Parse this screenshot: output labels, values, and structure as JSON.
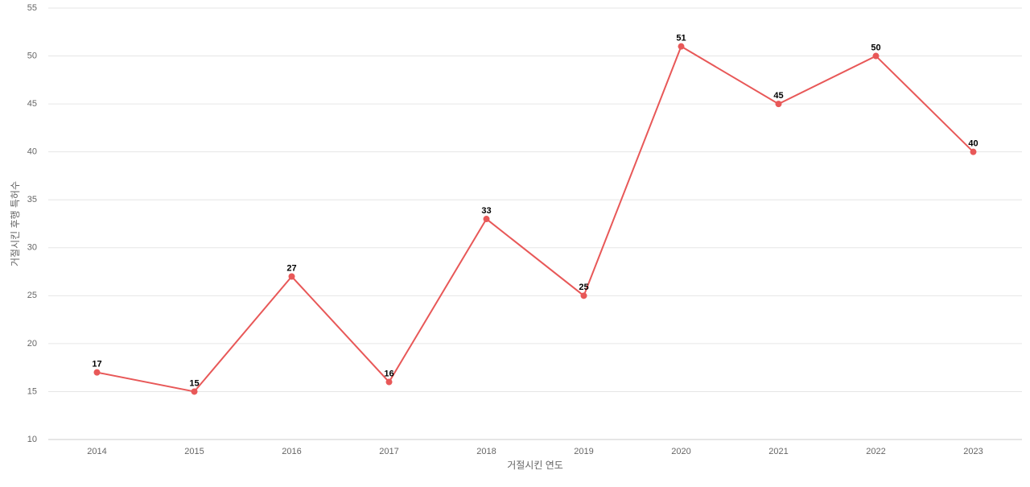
{
  "chart_data": {
    "type": "line",
    "x_label": "거절시킨 연도",
    "y_label": "거절시킨 후행 특허수",
    "categories": [
      "2014",
      "2015",
      "2016",
      "2017",
      "2018",
      "2019",
      "2020",
      "2021",
      "2022",
      "2023"
    ],
    "series": [
      {
        "color": "#e85858",
        "values": [
          17,
          15,
          27,
          16,
          33,
          25,
          51,
          45,
          50,
          40
        ]
      }
    ],
    "ylim": [
      10,
      55
    ],
    "yticks": [
      10,
      15,
      20,
      25,
      30,
      35,
      40,
      45,
      50,
      55
    ],
    "grid": true
  }
}
